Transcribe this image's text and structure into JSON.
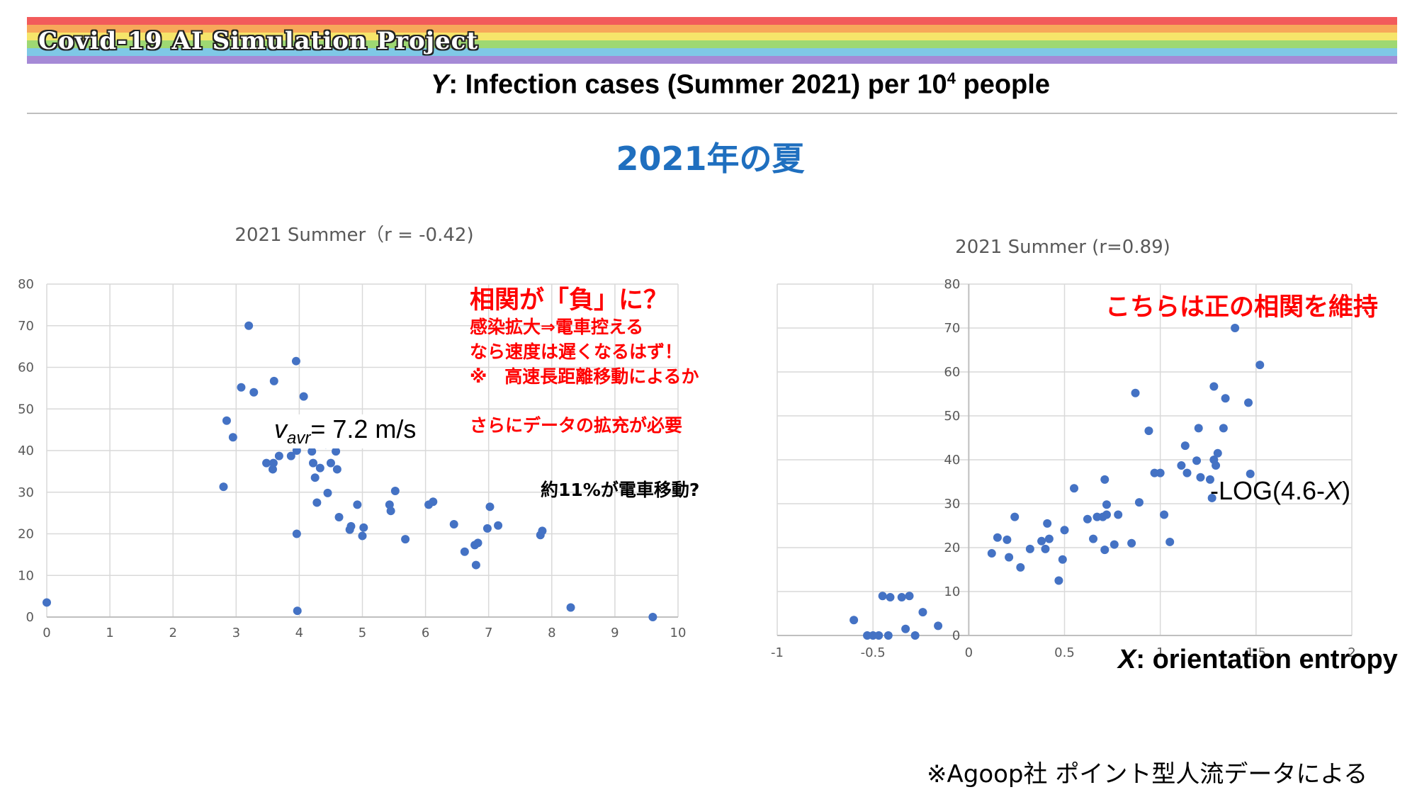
{
  "header": {
    "project_title": "Covid-19 AI Simulation Project",
    "rainbow_colors": [
      "#f25b5b",
      "#f7a85a",
      "#f6e56a",
      "#9ed873",
      "#7fc8e6",
      "#a58ad6"
    ],
    "y_var": "Y",
    "y_label_text": ": Infection cases (Summer 2021) per 10",
    "y_label_sup": "4",
    "y_label_tail": " people"
  },
  "subtitle": "2021年の夏",
  "notes_left": {
    "title": "相関が「負」に？",
    "lines": [
      "感染拡大⇒電車控える",
      "なら速度は遅くなるはず！",
      "※　高速長距離移動によるか",
      "",
      "さらにデータの拡充が必要"
    ],
    "train_note": "約11%が電車移動?",
    "vavr_var": "v",
    "vavr_sub": "avr",
    "vavr_value": "= 7.2 m/s"
  },
  "notes_right": {
    "title": "こちらは正の相関を維持",
    "fit_label": "-LOG(4.6-",
    "fit_var": "X",
    "fit_close": ")"
  },
  "footer": {
    "x_var": "X",
    "x_label_text": ": orientation entropy",
    "source": "※Agoop社 ポイント型人流データによる"
  },
  "colors": {
    "marker": "#4472c4",
    "grid": "#d9d9d9",
    "tick_text": "#595959",
    "accent_red": "#ff0000",
    "subtitle_blue": "#1f6fbf"
  },
  "chart_data": [
    {
      "type": "scatter",
      "title": "2021 Summer（r = -0.42)",
      "xlim": [
        0,
        10
      ],
      "ylim": [
        0,
        80
      ],
      "xticks": [
        0,
        1,
        2,
        3,
        4,
        5,
        6,
        7,
        8,
        9,
        10
      ],
      "yticks": [
        0,
        10,
        20,
        30,
        40,
        50,
        60,
        70,
        80
      ],
      "grid": true,
      "points": [
        [
          0,
          3.5
        ],
        [
          2.8,
          31.3
        ],
        [
          2.85,
          47.2
        ],
        [
          2.95,
          43.2
        ],
        [
          3.08,
          55.2
        ],
        [
          3.2,
          70
        ],
        [
          3.28,
          54
        ],
        [
          3.48,
          37
        ],
        [
          3.58,
          35.5
        ],
        [
          3.59,
          37
        ],
        [
          3.6,
          56.7
        ],
        [
          3.68,
          38.7
        ],
        [
          3.83,
          46.6
        ],
        [
          3.87,
          38.7
        ],
        [
          3.95,
          61.5
        ],
        [
          3.96,
          40
        ],
        [
          3.96,
          20
        ],
        [
          3.97,
          1.5
        ],
        [
          4.07,
          53
        ],
        [
          4.13,
          47.2
        ],
        [
          4.2,
          39.8
        ],
        [
          4.22,
          37
        ],
        [
          4.25,
          33.5
        ],
        [
          4.28,
          27.5
        ],
        [
          4.33,
          35.8
        ],
        [
          4.42,
          41.5
        ],
        [
          4.45,
          29.8
        ],
        [
          4.5,
          37
        ],
        [
          4.58,
          39.8
        ],
        [
          4.6,
          35.5
        ],
        [
          4.63,
          24
        ],
        [
          4.8,
          21
        ],
        [
          4.82,
          21.8
        ],
        [
          4.92,
          27
        ],
        [
          5.0,
          19.5
        ],
        [
          5.02,
          21.5
        ],
        [
          5.43,
          27
        ],
        [
          5.45,
          25.5
        ],
        [
          5.52,
          30.3
        ],
        [
          5.68,
          18.7
        ],
        [
          6.05,
          27
        ],
        [
          6.12,
          27.7
        ],
        [
          6.45,
          22.3
        ],
        [
          6.62,
          15.7
        ],
        [
          6.78,
          17.3
        ],
        [
          6.8,
          12.5
        ],
        [
          6.83,
          17.8
        ],
        [
          6.98,
          21.3
        ],
        [
          7.02,
          26.5
        ],
        [
          7.15,
          22
        ],
        [
          7.82,
          19.7
        ],
        [
          7.85,
          20.7
        ],
        [
          8.3,
          2.3
        ],
        [
          9.6,
          0
        ]
      ]
    },
    {
      "type": "scatter",
      "title": "2021 Summer (r=0.89)",
      "xlim": [
        -1,
        2
      ],
      "ylim": [
        0,
        80
      ],
      "xticks": [
        -1,
        -0.5,
        0,
        0.5,
        1,
        1.5,
        2
      ],
      "yticks": [
        0,
        10,
        20,
        30,
        40,
        50,
        60,
        70,
        80
      ],
      "grid": true,
      "points": [
        [
          -0.6,
          3.5
        ],
        [
          -0.53,
          0
        ],
        [
          -0.5,
          0
        ],
        [
          -0.47,
          0
        ],
        [
          -0.45,
          9
        ],
        [
          -0.42,
          0
        ],
        [
          -0.41,
          8.7
        ],
        [
          -0.35,
          8.7
        ],
        [
          -0.33,
          1.5
        ],
        [
          -0.31,
          9
        ],
        [
          -0.28,
          0
        ],
        [
          -0.24,
          5.3
        ],
        [
          -0.16,
          2.2
        ],
        [
          0.12,
          18.7
        ],
        [
          0.15,
          22.3
        ],
        [
          0.2,
          21.8
        ],
        [
          0.21,
          17.8
        ],
        [
          0.24,
          27
        ],
        [
          0.27,
          15.5
        ],
        [
          0.32,
          19.7
        ],
        [
          0.38,
          21.5
        ],
        [
          0.4,
          19.7
        ],
        [
          0.41,
          25.5
        ],
        [
          0.42,
          22
        ],
        [
          0.47,
          12.5
        ],
        [
          0.49,
          17.3
        ],
        [
          0.5,
          24
        ],
        [
          0.55,
          33.5
        ],
        [
          0.62,
          26.5
        ],
        [
          0.65,
          22
        ],
        [
          0.67,
          27
        ],
        [
          0.7,
          27
        ],
        [
          0.71,
          19.5
        ],
        [
          0.71,
          35.5
        ],
        [
          0.72,
          29.8
        ],
        [
          0.72,
          27.5
        ],
        [
          0.76,
          20.7
        ],
        [
          0.78,
          27.5
        ],
        [
          0.85,
          21
        ],
        [
          0.87,
          55.2
        ],
        [
          0.89,
          30.3
        ],
        [
          0.94,
          46.6
        ],
        [
          0.97,
          37
        ],
        [
          1.0,
          37
        ],
        [
          1.02,
          27.5
        ],
        [
          1.05,
          21.3
        ],
        [
          1.11,
          38.7
        ],
        [
          1.13,
          43.2
        ],
        [
          1.14,
          37
        ],
        [
          1.19,
          39.8
        ],
        [
          1.2,
          47.2
        ],
        [
          1.21,
          36
        ],
        [
          1.26,
          35.5
        ],
        [
          1.27,
          31.3
        ],
        [
          1.28,
          40
        ],
        [
          1.28,
          56.7
        ],
        [
          1.29,
          38.7
        ],
        [
          1.3,
          41.5
        ],
        [
          1.33,
          47.2
        ],
        [
          1.34,
          54
        ],
        [
          1.39,
          70
        ],
        [
          1.46,
          53
        ],
        [
          1.47,
          36.8
        ],
        [
          1.52,
          61.6
        ]
      ]
    }
  ]
}
